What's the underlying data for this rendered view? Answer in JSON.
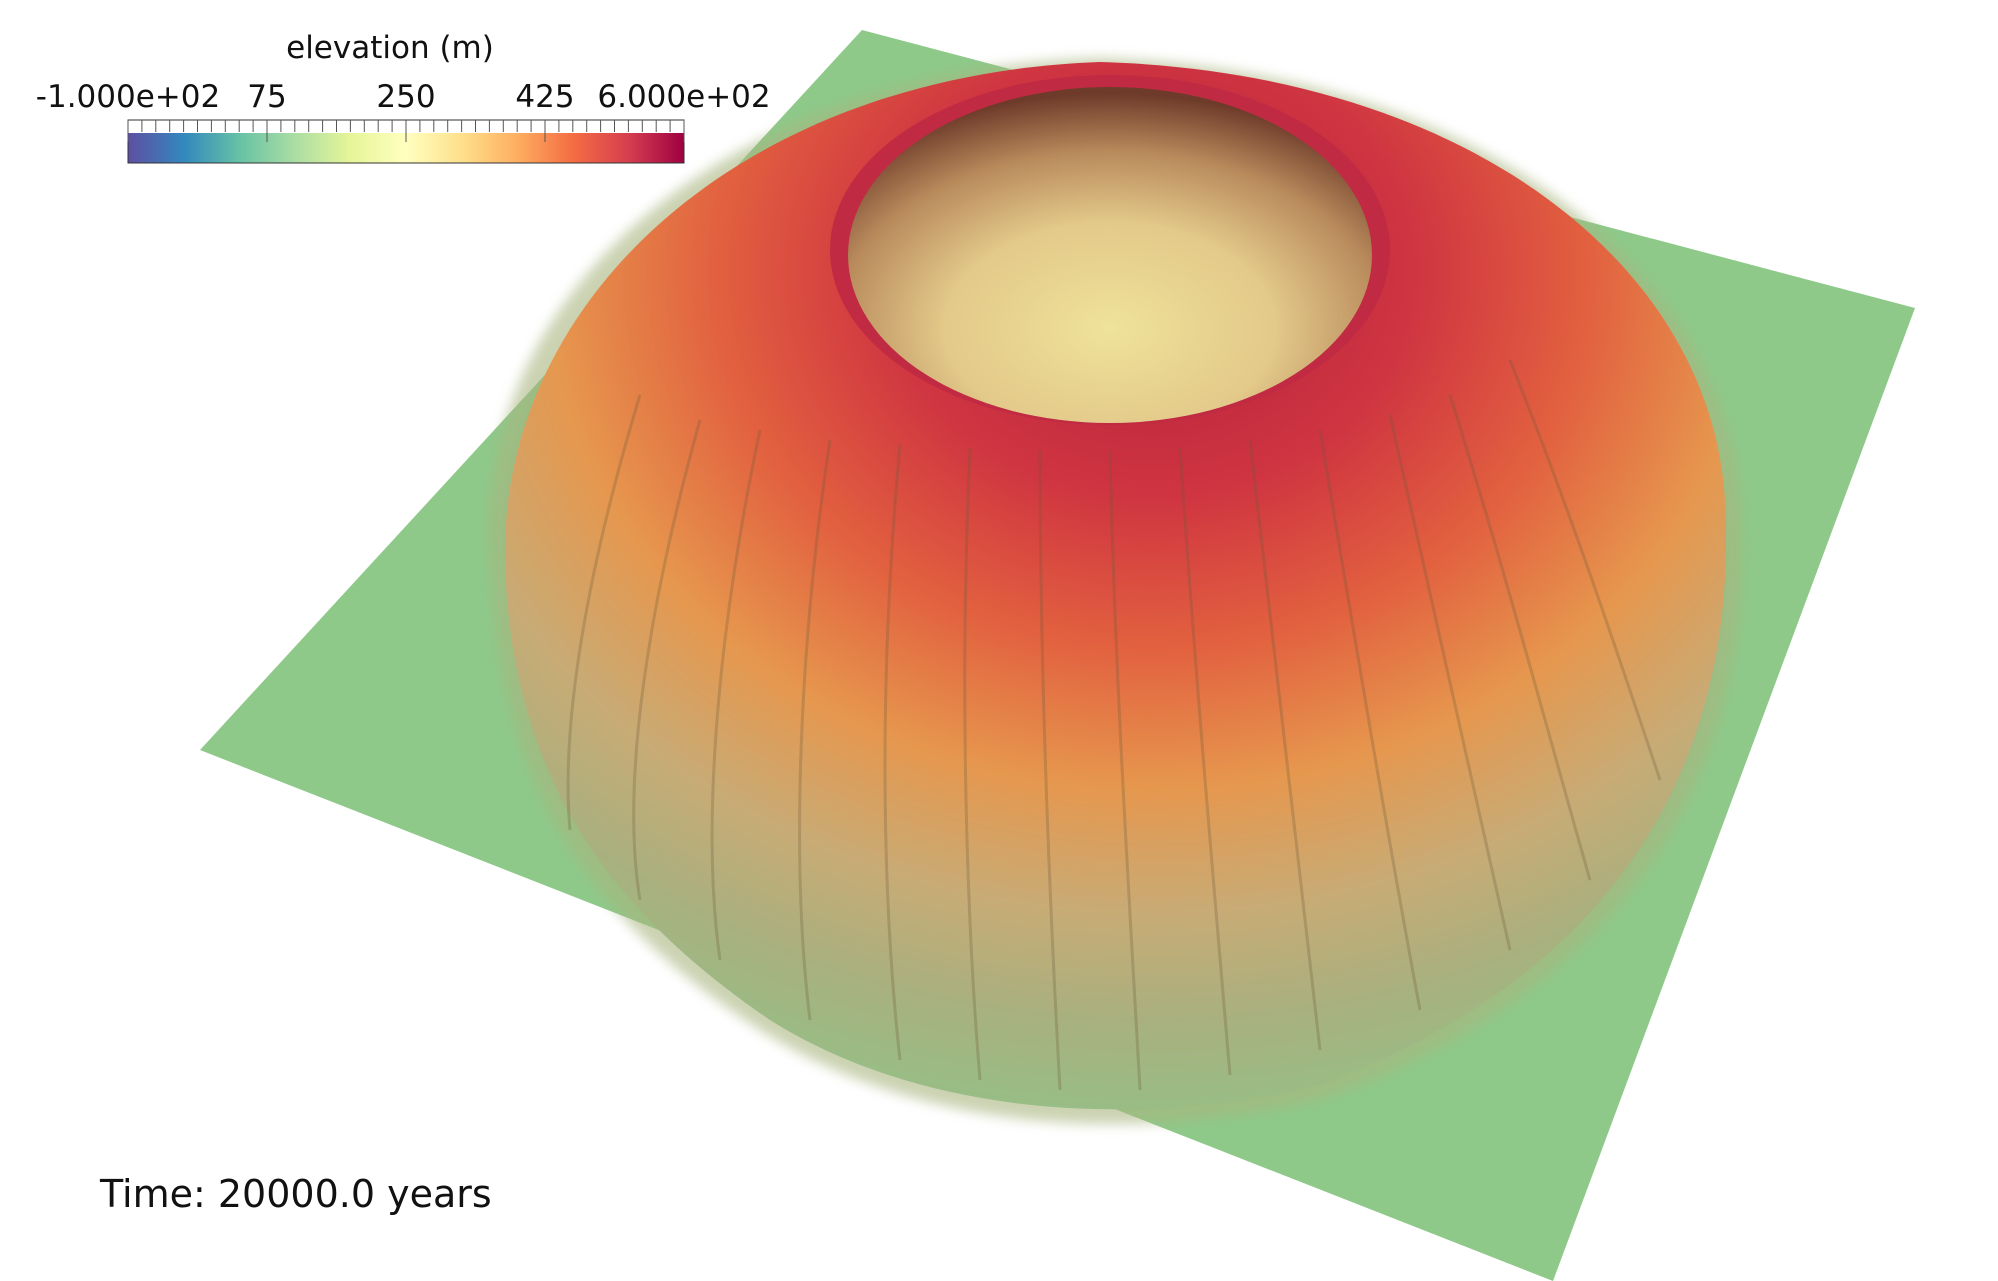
{
  "scene": {
    "subject": "eroded volcano terrain"
  },
  "colorbar": {
    "title": "elevation (m)",
    "min_label": "-1.000e+02",
    "max_label": "6.000e+02",
    "ticks": [
      "75",
      "250",
      "425"
    ],
    "range": [
      -100,
      600
    ],
    "colormap_stops": [
      "#5e4fa2",
      "#3288bd",
      "#66c2a5",
      "#abdda4",
      "#e6f598",
      "#ffffbf",
      "#fee08b",
      "#fdae61",
      "#f46d43",
      "#d53e4f",
      "#9e0142"
    ]
  },
  "time_label": "Time: 20000.0 years",
  "colors": {
    "plain_green": "#8ec98a",
    "rim_red": "#c8283f",
    "crater_floor": "#e9d58c"
  }
}
